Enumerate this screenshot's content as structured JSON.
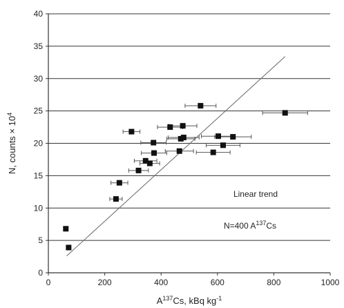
{
  "chart_data": {
    "type": "scatter",
    "xlim": [
      0,
      1000
    ],
    "ylim": [
      0,
      40
    ],
    "xticks": [
      "0",
      "200",
      "400",
      "600",
      "800",
      "1000"
    ],
    "yticks": [
      "0",
      "5",
      "10",
      "15",
      "20",
      "25",
      "30",
      "35",
      "40"
    ],
    "grid": "horizontal",
    "xlabel": {
      "pre": "A",
      "sup": "137",
      "post": "Cs, kBq kg",
      "sup2": "-1"
    },
    "ylabel": {
      "pre": "N, counts × 10",
      "sup": "4"
    },
    "annotations": {
      "trend": "Linear trend",
      "n": {
        "pre": "N=400 A",
        "sup": "137",
        "post": "Cs"
      }
    },
    "trend_line": {
      "x": [
        65,
        840
      ],
      "y": [
        2.6,
        33.4
      ]
    },
    "points": [
      {
        "x": 62,
        "y": 6.8,
        "xerr": 0
      },
      {
        "x": 72,
        "y": 3.9,
        "xerr": 0
      },
      {
        "x": 240,
        "y": 11.4,
        "xerr": 22
      },
      {
        "x": 252,
        "y": 13.9,
        "xerr": 30
      },
      {
        "x": 295,
        "y": 21.8,
        "xerr": 30
      },
      {
        "x": 320,
        "y": 15.8,
        "xerr": 35
      },
      {
        "x": 345,
        "y": 17.3,
        "xerr": 40
      },
      {
        "x": 360,
        "y": 16.9,
        "xerr": 35
      },
      {
        "x": 373,
        "y": 20.1,
        "xerr": 45
      },
      {
        "x": 375,
        "y": 18.5,
        "xerr": 45
      },
      {
        "x": 432,
        "y": 22.5,
        "xerr": 45
      },
      {
        "x": 465,
        "y": 18.8,
        "xerr": 50
      },
      {
        "x": 470,
        "y": 20.7,
        "xerr": 50
      },
      {
        "x": 477,
        "y": 22.7,
        "xerr": 50
      },
      {
        "x": 480,
        "y": 20.9,
        "xerr": 55
      },
      {
        "x": 540,
        "y": 25.8,
        "xerr": 55
      },
      {
        "x": 585,
        "y": 18.6,
        "xerr": 60
      },
      {
        "x": 603,
        "y": 21.1,
        "xerr": 60
      },
      {
        "x": 620,
        "y": 19.7,
        "xerr": 60
      },
      {
        "x": 655,
        "y": 21.0,
        "xerr": 65
      },
      {
        "x": 840,
        "y": 24.7,
        "xerr": 80
      }
    ]
  }
}
